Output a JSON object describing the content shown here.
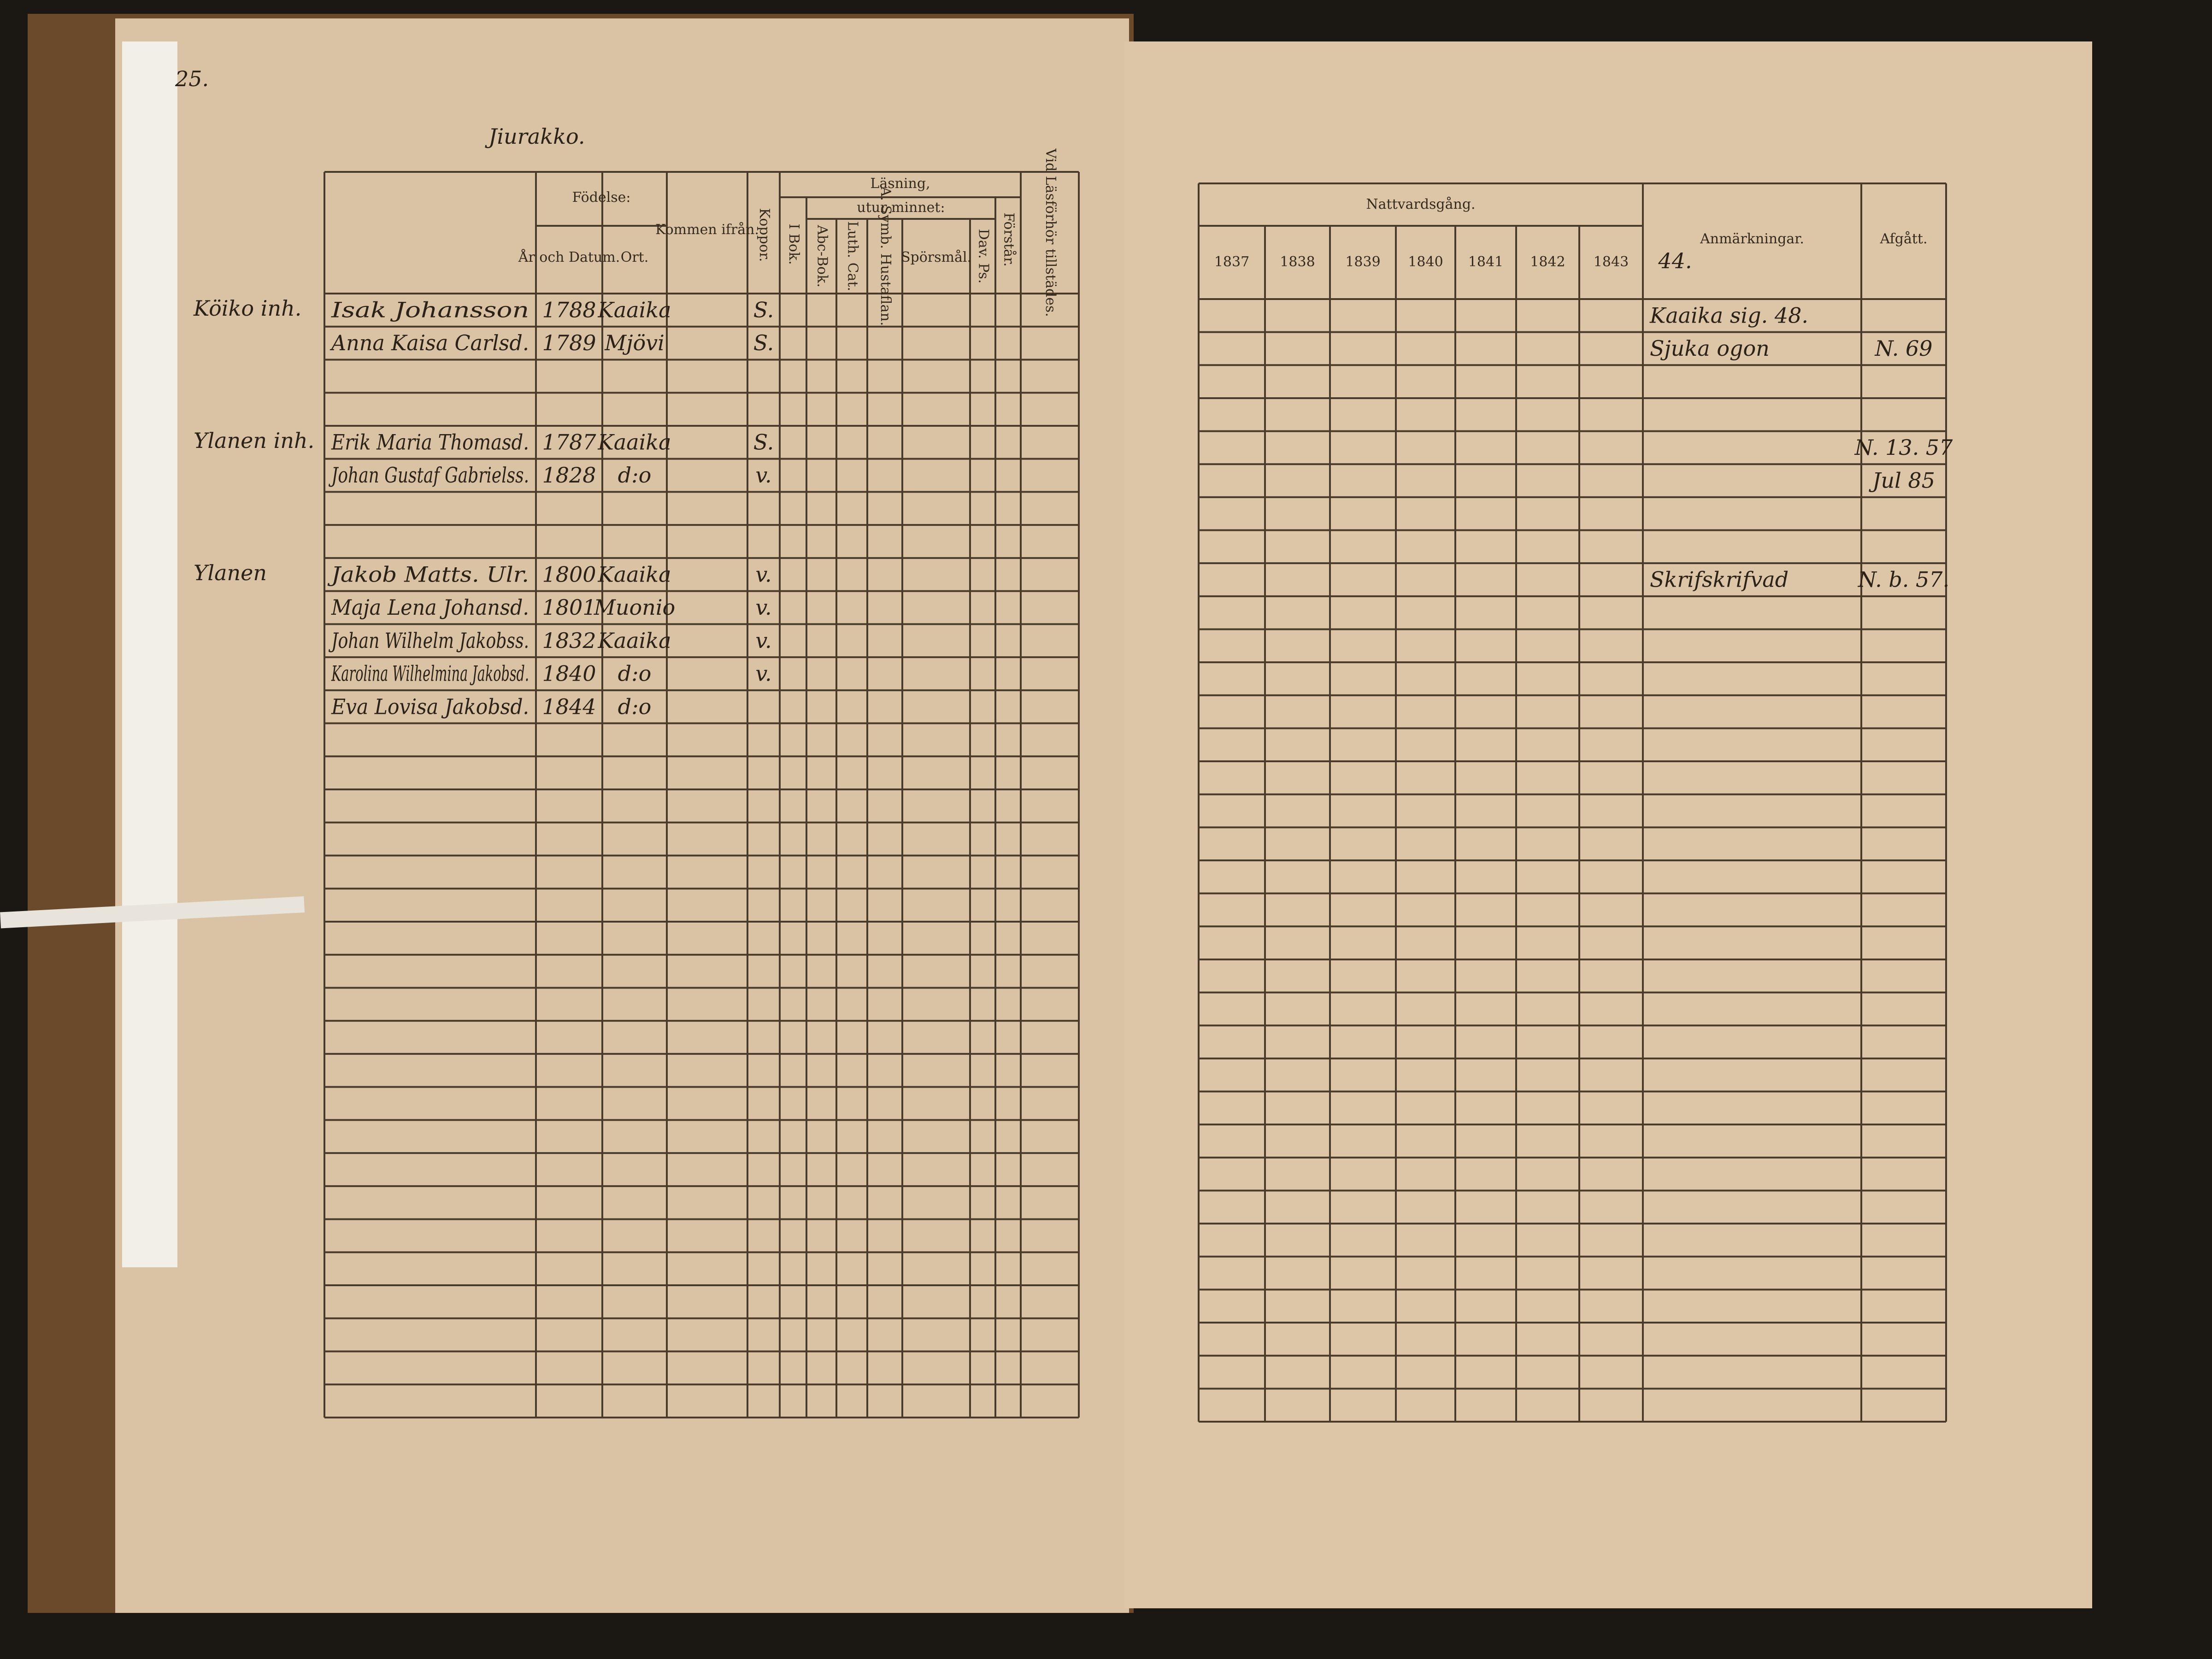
{
  "left_page": {
    "page_number": "25.",
    "title": "Jiurakko.",
    "headers": {
      "birth": "Födelse:",
      "year_date": "År och Datum.",
      "place": "Ort.",
      "came_from": "Kommen ifrån.",
      "smallpox": "Koppor.",
      "reading": "Läsning,",
      "by_heart": "utur minnet:",
      "in_book": "I Bok.",
      "abc_book": "Abc-Bok.",
      "luth_cat": "Luth. Cat.",
      "symb": "A. Symb. Hustaflan.",
      "questions": "Spörsmål.",
      "psalms": "Dav. Ps.",
      "understands": "Förstår.",
      "present": "Vid Läsförhör tillstädes."
    },
    "households": [
      {
        "note": "Köiko inh.",
        "members": [
          {
            "name": "Isak Johansson",
            "born": "1788",
            "place": "Kaaika",
            "smallpox": "S.",
            "remark": "Kaaika sig. 48.",
            "departed": ""
          },
          {
            "name": "Anna Kaisa Carlsd.",
            "born": "1789",
            "place": "Mjövi",
            "smallpox": "S.",
            "remark": "Sjuka ogon",
            "departed": "N. 69"
          }
        ]
      },
      {
        "note": "Ylanen inh.",
        "members": [
          {
            "name": "Erik Maria Thomasd.",
            "born": "1787",
            "place": "Kaaika",
            "smallpox": "S.",
            "remark": "",
            "departed": "N. 13. 57"
          },
          {
            "name": "Johan Gustaf Gabrielss.",
            "born": "1828",
            "place": "d:o",
            "smallpox": "v.",
            "remark": "",
            "departed": "Jul 85"
          }
        ]
      },
      {
        "note": "Ylanen",
        "members": [
          {
            "name": "Jakob Matts. Ulr.",
            "born": "1800",
            "place": "Kaaika",
            "smallpox": "v.",
            "remark": "Skrifskrifvad",
            "departed": "N. b. 57."
          },
          {
            "name": "Maja Lena Johansd.",
            "born": "1801",
            "place": "Muonio",
            "smallpox": "v.",
            "remark": "",
            "departed": ""
          },
          {
            "name": "Johan Wilhelm Jakobss.",
            "born": "1832",
            "place": "Kaaika",
            "smallpox": "v.",
            "remark": "",
            "departed": ""
          },
          {
            "name": "Karolina Wilhelmina Jakobsd.",
            "born": "1840",
            "place": "d:o",
            "smallpox": "v.",
            "remark": "",
            "departed": ""
          },
          {
            "name": "Eva Lovisa Jakobsd.",
            "born": "1844",
            "place": "d:o",
            "smallpox": "",
            "remark": "",
            "departed": ""
          }
        ]
      }
    ]
  },
  "right_page": {
    "communion": "Nattvardsgång.",
    "years": [
      "1837",
      "1838",
      "1839",
      "1840",
      "1841",
      "1842",
      "1843",
      "44."
    ],
    "remarks": "Anmärkningar.",
    "departed": "Afgått."
  }
}
